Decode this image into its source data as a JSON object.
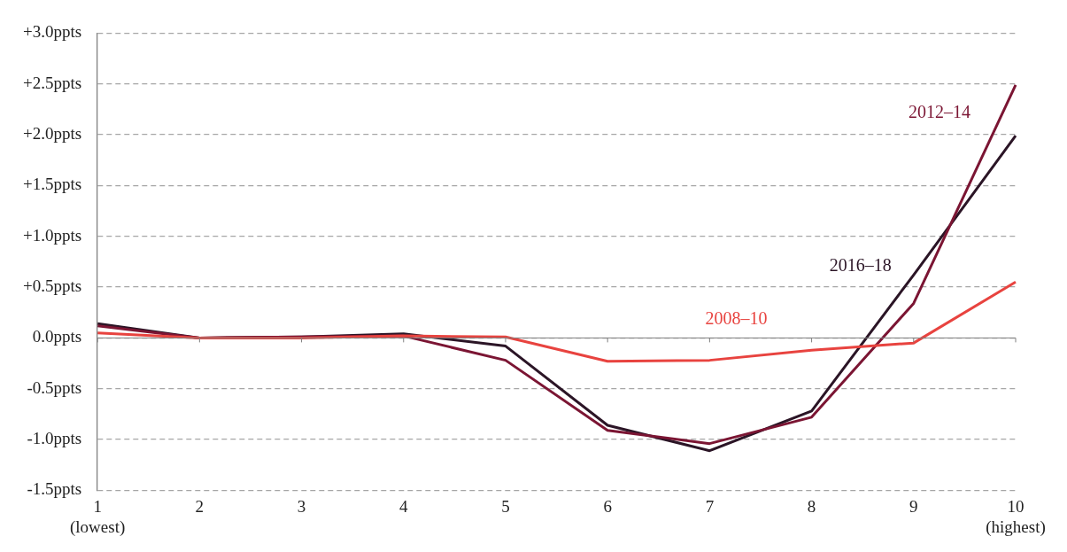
{
  "chart_data": {
    "type": "line",
    "categories": [
      "1\n(lowest)",
      "2",
      "3",
      "4",
      "5",
      "6",
      "7",
      "8",
      "9",
      "10\n(highest)"
    ],
    "series": [
      {
        "name": "2008–10",
        "color": "#e8433f",
        "values": [
          0.05,
          0,
          0,
          0.02,
          0.01,
          -0.23,
          -0.22,
          -0.12,
          -0.05,
          0.55
        ]
      },
      {
        "name": "2012–14",
        "color": "#7b1533",
        "values": [
          0.12,
          0,
          0.01,
          0.02,
          -0.22,
          -0.91,
          -1.04,
          -0.78,
          0.34,
          2.49
        ]
      },
      {
        "name": "2016–18",
        "color": "#2b1526",
        "values": [
          0.14,
          0,
          0.01,
          0.04,
          -0.08,
          -0.86,
          -1.11,
          -0.72,
          0.62,
          1.99
        ]
      }
    ],
    "ylim": [
      -1.5,
      3
    ],
    "yticks": [
      {
        "value": -1.5,
        "label": "-1.5ppts"
      },
      {
        "value": -1,
        "label": "-1.0ppts"
      },
      {
        "value": -0.5,
        "label": "-0.5ppts"
      },
      {
        "value": 0,
        "label": "0.0ppts"
      },
      {
        "value": 0.5,
        "label": "+0.5ppts"
      },
      {
        "value": 1,
        "label": "+1.0ppts"
      },
      {
        "value": 1.5,
        "label": "+1.5ppts"
      },
      {
        "value": 2,
        "label": "+2.0ppts"
      },
      {
        "value": 2.5,
        "label": "+2.5ppts"
      },
      {
        "value": 3,
        "label": "+3.0ppts"
      }
    ],
    "grid": "y",
    "legend": false,
    "marker": "none",
    "line_style": "solid"
  }
}
